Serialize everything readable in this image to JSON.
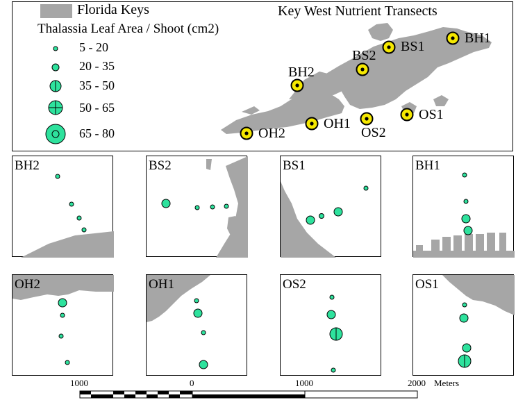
{
  "legend": {
    "keys_label": "Florida Keys",
    "title": "Key West Nutrient Transects",
    "size_title": "Thalassia Leaf Area / Shoot (cm2)",
    "classes": [
      {
        "label": "5 - 20"
      },
      {
        "label": "20 - 35"
      },
      {
        "label": "35 - 50"
      },
      {
        "label": "50 - 65"
      },
      {
        "label": "65 - 80"
      }
    ]
  },
  "colors": {
    "land": "#a6a6a6",
    "point": "#2ee29d",
    "site": "#f5e800"
  },
  "sites": [
    "BH1",
    "BS1",
    "BS2",
    "BH2",
    "OS1",
    "OS2",
    "OH1",
    "OH2"
  ],
  "panels": [
    {
      "name": "BH2"
    },
    {
      "name": "BS2"
    },
    {
      "name": "BS1"
    },
    {
      "name": "BH1"
    },
    {
      "name": "OH2"
    },
    {
      "name": "OH1"
    },
    {
      "name": "OS2"
    },
    {
      "name": "OS1"
    }
  ],
  "scale": {
    "labels": [
      "1000",
      "0",
      "1000",
      "2000"
    ],
    "unit": "Meters"
  }
}
